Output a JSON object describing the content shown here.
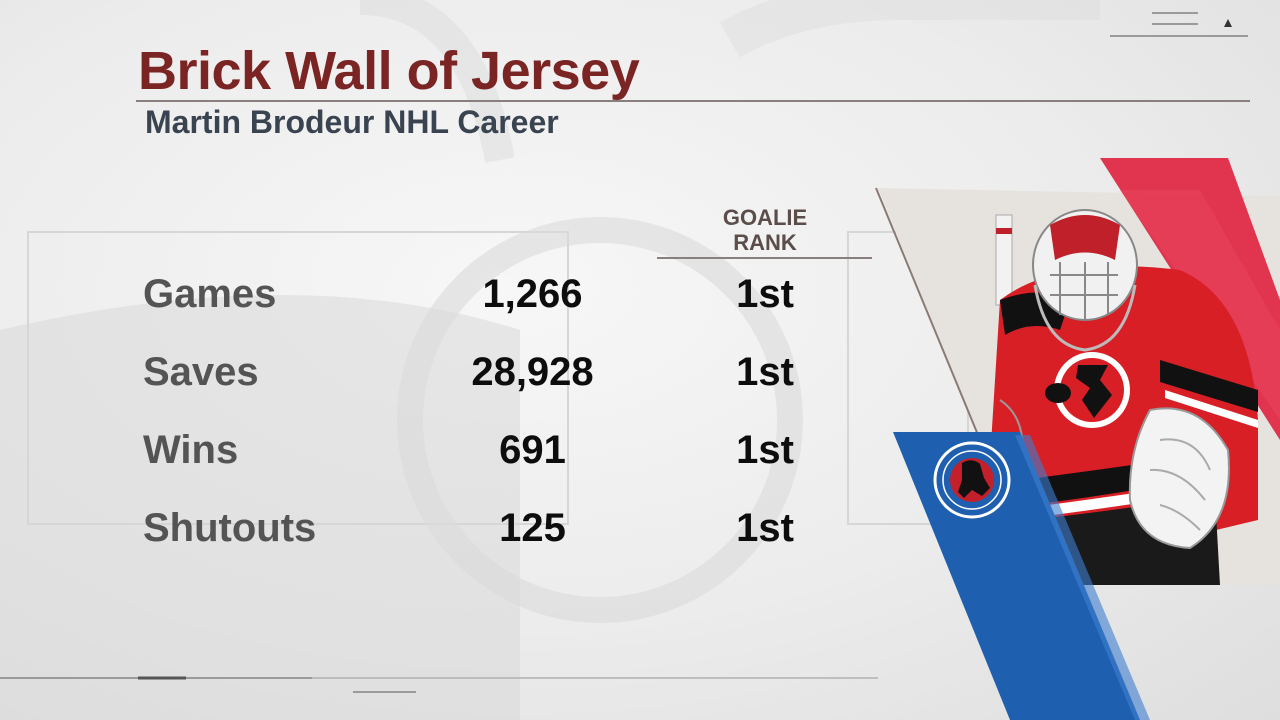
{
  "graphic": {
    "title": "Brick Wall of Jersey",
    "subtitle": "Martin Brodeur NHL Career",
    "column_header": "GOALIE RANK"
  },
  "stats": [
    {
      "label": "Games",
      "value": "1,266",
      "rank": "1st"
    },
    {
      "label": "Saves",
      "value": "28,928",
      "rank": "1st"
    },
    {
      "label": "Wins",
      "value": "691",
      "rank": "1st"
    },
    {
      "label": "Shutouts",
      "value": "125",
      "rank": "1st"
    }
  ],
  "colors": {
    "title": "#7a2424",
    "subtitle": "#3a4451",
    "accent_red": "#e0203e",
    "accent_blue": "#1f5fb0",
    "jersey_red": "#d81f26"
  },
  "icons": {
    "hall_of_fame_logo": "hockey-hall-of-fame-logo",
    "goalie_photo": "goalie-photo"
  }
}
